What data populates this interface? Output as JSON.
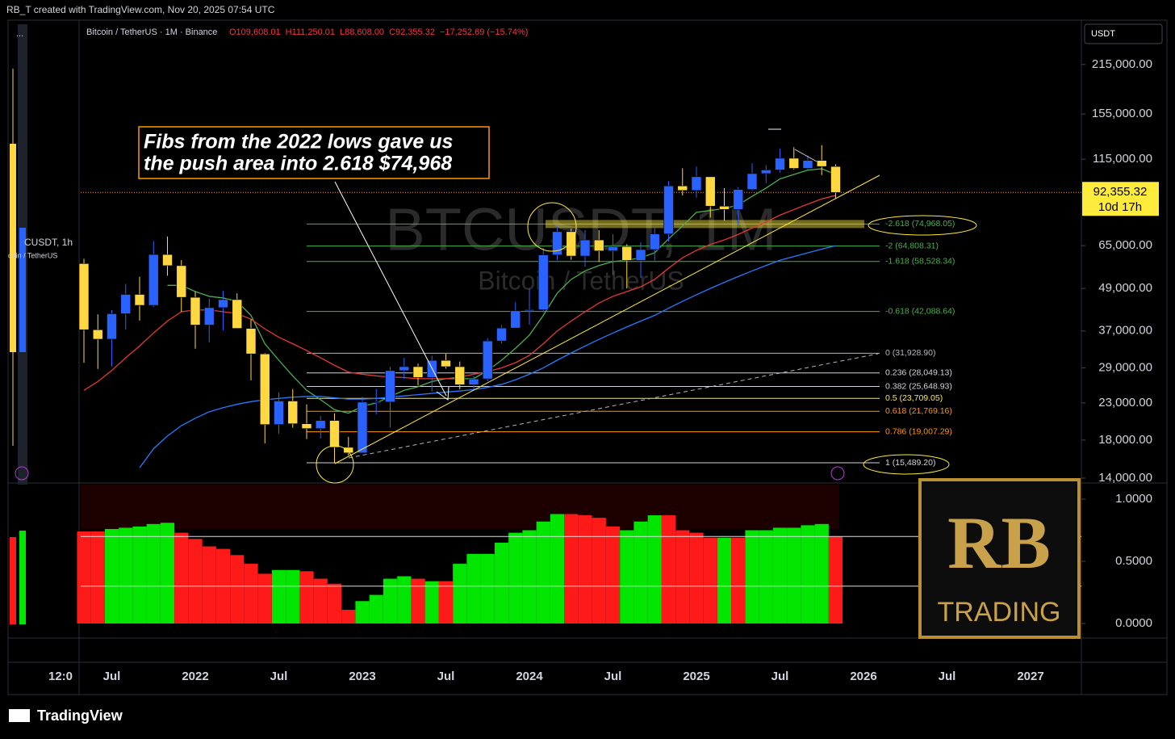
{
  "header": {
    "credit": "RB_T created with TradingView.com, Nov 20, 2025 07:54 UTC",
    "symbol": "Bitcoin / TetherUS · 1M · Binance",
    "ohlc": [
      "O109,608.01",
      "H111,250.01",
      "L88,608.00",
      "C92,355.32",
      "−17,252.69 (−15.74%)"
    ]
  },
  "currency": "USDT",
  "watermark": {
    "symbol": "BTCUSDT, 1M",
    "name": "Bitcoin / TetherUS"
  },
  "logo": {
    "mark": "RB",
    "word": "TRADING"
  },
  "left_panel": {
    "menu": "...",
    "symbol": "CUSDT, 1h",
    "name": "coin / TetherUS",
    "time": "12:0"
  },
  "footer": "TradingView",
  "chart_data": [
    {
      "type": "candlestick",
      "log_scale": true,
      "annotation": {
        "lines": [
          "Fibs from the 2022 lows gave us",
          "the push area into 2.618 $74,968"
        ]
      },
      "categories": [
        null,
        null,
        "Jul",
        null,
        null,
        null,
        null,
        null,
        "2022",
        null,
        null,
        null,
        null,
        null,
        "Jul",
        null,
        null,
        null,
        null,
        null,
        "2023",
        null,
        null,
        null,
        null,
        null,
        "Jul",
        null,
        null,
        null,
        null,
        null,
        "2024",
        null,
        null,
        null,
        null,
        null,
        "Jul",
        null,
        null,
        null,
        null,
        null,
        "2025",
        null,
        null,
        null,
        null,
        null,
        "Jul",
        null,
        null,
        null,
        null,
        null,
        "2026",
        null,
        null,
        null,
        null,
        null,
        "Jul",
        null,
        null,
        null,
        null,
        null,
        "2027",
        null,
        null
      ],
      "open": [
        57750,
        37300,
        35040,
        41460,
        47100,
        43820,
        61300,
        56950,
        46200,
        38470,
        43160,
        45510,
        37630,
        31800,
        19940,
        23300,
        20050,
        19420,
        20490,
        17160,
        16540,
        23125,
        23140,
        28480,
        29230,
        27210,
        30470,
        29230,
        25940,
        26960,
        34640,
        37720,
        42280,
        42580,
        61130,
        71280,
        60670,
        67490,
        62770,
        64620,
        58970,
        63330,
        70220,
        96410,
        93580,
        102430,
        84350,
        82550,
        94170,
        104590,
        107140,
        115760,
        108240,
        114050,
        109608.01,
        null,
        null,
        null,
        null,
        null,
        null,
        null,
        null,
        null,
        null,
        null,
        null,
        null,
        null,
        null,
        null
      ],
      "high": [
        59600,
        41300,
        42450,
        50500,
        52920,
        67000,
        69000,
        59050,
        47990,
        45820,
        48190,
        47440,
        40000,
        31980,
        24670,
        25210,
        22800,
        21100,
        21480,
        18390,
        23960,
        25250,
        29180,
        31000,
        29820,
        31430,
        31800,
        30230,
        27480,
        35280,
        38450,
        44730,
        48970,
        64000,
        73780,
        72800,
        71980,
        71950,
        70080,
        65600,
        66500,
        73620,
        99590,
        108350,
        109590,
        102500,
        95000,
        95760,
        111980,
        110530,
        123220,
        124470,
        117900,
        126200,
        111250.01,
        null,
        null,
        null,
        null,
        null,
        null,
        null,
        null,
        null,
        null,
        null,
        null,
        null,
        null,
        null,
        null
      ],
      "low": [
        30000,
        28800,
        29280,
        37330,
        39600,
        43280,
        53250,
        42000,
        32900,
        34320,
        37150,
        37580,
        26700,
        17620,
        18780,
        19520,
        18125,
        18190,
        15476,
        16260,
        16500,
        21350,
        19550,
        26940,
        25810,
        24800,
        28860,
        25170,
        24900,
        26560,
        34100,
        37620,
        38550,
        41880,
        59010,
        59190,
        56550,
        58400,
        53490,
        49000,
        52550,
        58900,
        66800,
        90500,
        89260,
        78260,
        76600,
        74500,
        93320,
        98200,
        105270,
        107350,
        107260,
        103530,
        88608,
        null,
        null,
        null,
        null,
        null,
        null,
        null,
        null,
        null,
        null,
        null,
        null,
        null,
        null,
        null,
        null
      ],
      "close": [
        37300,
        35040,
        41460,
        47100,
        43820,
        61300,
        56950,
        46200,
        38470,
        43160,
        45510,
        37630,
        31800,
        19940,
        23300,
        20050,
        19420,
        20490,
        17160,
        16540,
        23125,
        23140,
        28480,
        29230,
        27210,
        30470,
        29230,
        25940,
        26960,
        34640,
        37720,
        42280,
        42580,
        61130,
        71280,
        60670,
        67490,
        62770,
        64620,
        58970,
        63330,
        70220,
        96410,
        93580,
        102430,
        84350,
        82550,
        94170,
        104590,
        107140,
        115760,
        108240,
        114050,
        109608.01,
        92355.32,
        null,
        null,
        null,
        null,
        null,
        null,
        null,
        null,
        null,
        null,
        null,
        null,
        null,
        null,
        null,
        null
      ],
      "up_color": "#2962ff",
      "down_color": "#ffd740",
      "series": [
        {
          "color": "#4caf50",
          "values": [
            null,
            null,
            null,
            null,
            null,
            null,
            50000,
            50000,
            48000,
            46500,
            46000,
            45000,
            41000,
            34000,
            30500,
            27500,
            25000,
            23500,
            22000,
            21500,
            22500,
            23000,
            24000,
            25000,
            25600,
            26500,
            27000,
            27000,
            27000,
            28500,
            30500,
            33000,
            36000,
            41000,
            47500,
            52000,
            55000,
            57000,
            58500,
            59000,
            60000,
            62000,
            68000,
            74000,
            81000,
            82000,
            83000,
            85000,
            90000,
            95000,
            101000,
            104000,
            107000,
            108000,
            104000,
            null,
            null,
            null,
            null,
            null,
            null,
            null,
            null,
            null,
            null,
            null,
            null,
            null,
            null,
            null,
            null
          ]
        },
        {
          "color": "#e53935",
          "values": [
            25000,
            26500,
            28500,
            31000,
            33500,
            36500,
            39500,
            42000,
            42500,
            42500,
            42000,
            41500,
            40000,
            37500,
            35500,
            34000,
            32500,
            31000,
            29500,
            28200,
            27800,
            27500,
            27300,
            27200,
            27000,
            27000,
            27000,
            27300,
            27800,
            28300,
            29000,
            30000,
            31500,
            34000,
            37000,
            39500,
            42000,
            44500,
            46500,
            48000,
            49500,
            52000,
            56000,
            60000,
            63000,
            65500,
            67500,
            70000,
            73000,
            76000,
            79500,
            82500,
            85500,
            88500,
            90500,
            null,
            null,
            null,
            null,
            null,
            null,
            null,
            null,
            null,
            null,
            null,
            null,
            null,
            null,
            null,
            null
          ]
        },
        {
          "color": "#2979ff",
          "values": [
            null,
            null,
            null,
            null,
            15000,
            17000,
            18500,
            19800,
            20800,
            21700,
            22300,
            22800,
            23200,
            23500,
            23700,
            23900,
            24000,
            24000,
            23800,
            23600,
            23600,
            23700,
            23900,
            24100,
            24300,
            24500,
            24700,
            24900,
            25100,
            25500,
            26000,
            26800,
            27800,
            29000,
            30500,
            32000,
            33500,
            35000,
            36500,
            38000,
            39500,
            41000,
            43000,
            45000,
            47000,
            49000,
            51000,
            53000,
            55000,
            57000,
            59000,
            60500,
            62000,
            63500,
            65000,
            null,
            null,
            null,
            null,
            null,
            null,
            null,
            null,
            null,
            null,
            null,
            null,
            null,
            null,
            null,
            null
          ]
        }
      ],
      "fib_levels": [
        {
          "value": 74968.05,
          "label": "-2.618 (74,968.05)",
          "color": "#4caf50"
        },
        {
          "value": 64808.31,
          "label": "-2 (64,808.31)",
          "color": "#4caf50"
        },
        {
          "value": 58528.34,
          "label": "-1.618 (58,528.34)",
          "color": "#4caf50"
        },
        {
          "value": 42088.64,
          "label": "-0.618 (42,088.64)",
          "color": "#4caf50"
        },
        {
          "value": 31928.9,
          "label": "0 (31,928.90)",
          "color": "#b2b5be"
        },
        {
          "value": 28049.13,
          "label": "0.236 (28,049.13)",
          "color": "#d1d4dc"
        },
        {
          "value": 25648.93,
          "label": "0.382 (25,648.93)",
          "color": "#d1d4dc"
        },
        {
          "value": 23709.05,
          "label": "0.5 (23,709.05)",
          "color": "#ffeb3b"
        },
        {
          "value": 21769.16,
          "label": "0.618 (21,769.16)",
          "color": "#ff9800"
        },
        {
          "value": 19007.29,
          "label": "0.786 (19,007.29)",
          "color": "#ff9800"
        },
        {
          "value": 15489.2,
          "label": "1 (15,489.20)",
          "color": "#d1d4dc"
        }
      ],
      "last_price": {
        "value": 92355.32,
        "label": "92,355.32"
      },
      "countdown": "10d 17h",
      "ylim": [
        13560,
        288000
      ],
      "yticks": [
        {
          "value": 14000,
          "label": "14,000.00"
        },
        {
          "value": 18000,
          "label": "18,000.00"
        },
        {
          "value": 23000,
          "label": "23,000.00"
        },
        {
          "value": 29000,
          "label": "29,000.00"
        },
        {
          "value": 37000,
          "label": "37,000.00"
        },
        {
          "value": 49000,
          "label": "49,000.00"
        },
        {
          "value": 65000,
          "label": "65,000.00"
        },
        {
          "value": 115000,
          "label": "115,000.00"
        },
        {
          "value": 155000,
          "label": "155,000.00"
        },
        {
          "value": 215000,
          "label": "215,000.00"
        }
      ]
    },
    {
      "type": "bar",
      "values": [
        0.74,
        0.74,
        0.76,
        0.77,
        0.78,
        0.8,
        0.81,
        0.73,
        0.68,
        0.62,
        0.6,
        0.55,
        0.48,
        0.4,
        0.43,
        0.43,
        0.42,
        0.36,
        0.32,
        0.11,
        0.18,
        0.23,
        0.36,
        0.38,
        0.36,
        0.34,
        0.34,
        0.48,
        0.56,
        0.56,
        0.65,
        0.73,
        0.75,
        0.82,
        0.88,
        0.88,
        0.87,
        0.85,
        0.78,
        0.75,
        0.82,
        0.87,
        0.87,
        0.75,
        0.73,
        0.69,
        0.69,
        0.69,
        0.75,
        0.75,
        0.77,
        0.77,
        0.79,
        0.8,
        0.7,
        null,
        null,
        null,
        null,
        null,
        null,
        null,
        null,
        null,
        null,
        null,
        null,
        null,
        null,
        null,
        null
      ],
      "colors": [
        "#ff1a1a",
        "#ff1a1a",
        "#00e600",
        "#00e600",
        "#00e600",
        "#00e600",
        "#00e600",
        "#ff1a1a",
        "#ff1a1a",
        "#ff1a1a",
        "#ff1a1a",
        "#ff1a1a",
        "#ff1a1a",
        "#ff1a1a",
        "#00e600",
        "#00e600",
        "#ff1a1a",
        "#ff1a1a",
        "#ff1a1a",
        "#ff1a1a",
        "#00e600",
        "#00e600",
        "#00e600",
        "#00e600",
        "#ff1a1a",
        "#00e600",
        "#ff1a1a",
        "#00e600",
        "#00e600",
        "#00e600",
        "#00e600",
        "#00e600",
        "#00e600",
        "#00e600",
        "#00e600",
        "#ff1a1a",
        "#ff1a1a",
        "#ff1a1a",
        "#ff1a1a",
        "#00e600",
        "#00e600",
        "#00e600",
        "#ff1a1a",
        "#ff1a1a",
        "#ff1a1a",
        "#ff1a1a",
        "#00e600",
        "#ff1a1a",
        "#00e600",
        "#00e600",
        "#00e600",
        "#00e600",
        "#00e600",
        "#00e600",
        "#ff1a1a",
        null,
        null,
        null,
        null,
        null,
        null,
        null,
        null,
        null,
        null,
        null,
        null,
        null,
        null,
        null,
        null
      ],
      "levels": [
        0.7,
        0.3
      ],
      "ylim": [
        -0.117,
        1.117
      ],
      "yticks": [
        {
          "value": 0,
          "label": "0.0000"
        },
        {
          "value": 0.5,
          "label": "0.5000"
        },
        {
          "value": 1,
          "label": "1.0000"
        }
      ]
    }
  ]
}
